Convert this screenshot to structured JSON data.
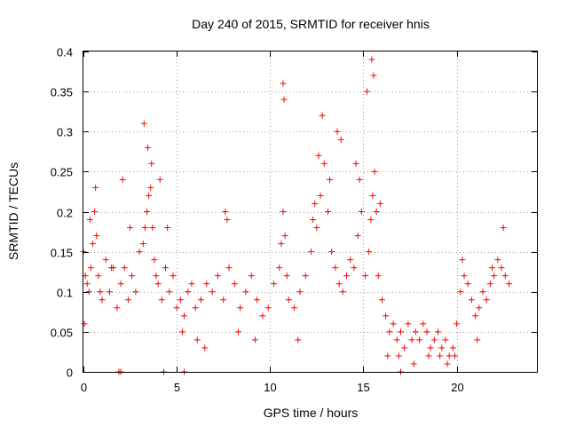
{
  "chart_data": {
    "type": "scatter",
    "title": "Day 240 of 2015, SRMTID for receiver hnis",
    "xlabel": "GPS time / hours",
    "ylabel": "SRMTID / TECUs",
    "xlim": [
      0,
      24.3
    ],
    "ylim": [
      0,
      0.4
    ],
    "xticks": [
      0,
      5,
      10,
      15,
      20
    ],
    "xtick_labels": [
      "0",
      "5",
      "10",
      "15",
      "20"
    ],
    "yticks": [
      0,
      0.05,
      0.1,
      0.15,
      0.2,
      0.25,
      0.3,
      0.35,
      0.4
    ],
    "ytick_labels": [
      "0",
      "0.05",
      "0.1",
      "0.15",
      "0.2",
      "0.25",
      "0.3",
      "0.35",
      "0.4"
    ],
    "grid": true,
    "marker": "+",
    "series": [
      {
        "name": "SRMTID hnis",
        "color": "#ff0000",
        "x": [
          0.0,
          0.1,
          0.2,
          0.3,
          0.4,
          0.5,
          0.6,
          0.7,
          0.8,
          0.9,
          1.0,
          1.2,
          1.4,
          1.6,
          1.8,
          2.0,
          2.2,
          2.4,
          2.6,
          2.8,
          3.0,
          3.2,
          3.3,
          3.4,
          3.5,
          3.6,
          3.7,
          3.8,
          3.9,
          4.0,
          4.2,
          4.4,
          4.6,
          4.8,
          5.0,
          5.2,
          5.4,
          5.6,
          5.8,
          6.0,
          6.3,
          6.6,
          6.9,
          7.2,
          7.5,
          7.8,
          8.1,
          8.4,
          8.7,
          9.0,
          9.3,
          9.6,
          9.9,
          10.2,
          10.5,
          10.6,
          10.7,
          10.8,
          10.9,
          11.0,
          11.3,
          11.6,
          11.9,
          12.2,
          12.5,
          12.7,
          12.9,
          13.1,
          13.3,
          13.5,
          13.7,
          13.9,
          14.1,
          14.3,
          14.5,
          14.7,
          14.9,
          15.1,
          15.3,
          15.4,
          15.5,
          15.6,
          15.7,
          15.8,
          16.0,
          16.2,
          16.4,
          16.6,
          16.8,
          17.0,
          17.2,
          17.4,
          17.6,
          17.8,
          18.0,
          18.2,
          18.4,
          18.6,
          18.8,
          19.0,
          19.2,
          19.4,
          19.6,
          19.8,
          20.0,
          20.2,
          20.4,
          20.6,
          20.8,
          21.0,
          21.2,
          21.4,
          21.6,
          21.8,
          22.0,
          22.2,
          22.4,
          22.6,
          22.8,
          0.05,
          0.35,
          0.65,
          1.5,
          2.1,
          2.5,
          3.25,
          3.45,
          3.65,
          4.1,
          4.5,
          5.3,
          6.1,
          6.5,
          7.6,
          7.7,
          8.3,
          9.2,
          10.7,
          10.75,
          11.5,
          12.3,
          12.4,
          12.6,
          12.8,
          13.2,
          13.6,
          13.8,
          14.6,
          14.8,
          15.2,
          15.45,
          15.55,
          15.9,
          16.3,
          16.9,
          17.7,
          18.5,
          19.1,
          19.5,
          19.9,
          20.3,
          21.1,
          21.9,
          22.5,
          1.9,
          2.0,
          4.3,
          5.4,
          17.0
        ],
        "y": [
          0.15,
          0.12,
          0.11,
          0.1,
          0.13,
          0.16,
          0.2,
          0.17,
          0.12,
          0.1,
          0.09,
          0.14,
          0.1,
          0.13,
          0.08,
          0.11,
          0.13,
          0.09,
          0.12,
          0.1,
          0.15,
          0.16,
          0.18,
          0.2,
          0.22,
          0.23,
          0.18,
          0.14,
          0.12,
          0.11,
          0.09,
          0.13,
          0.1,
          0.12,
          0.08,
          0.09,
          0.07,
          0.1,
          0.11,
          0.08,
          0.09,
          0.11,
          0.1,
          0.12,
          0.09,
          0.13,
          0.11,
          0.08,
          0.1,
          0.12,
          0.09,
          0.07,
          0.08,
          0.11,
          0.13,
          0.16,
          0.2,
          0.17,
          0.12,
          0.09,
          0.08,
          0.1,
          0.12,
          0.15,
          0.18,
          0.22,
          0.26,
          0.2,
          0.15,
          0.13,
          0.11,
          0.1,
          0.12,
          0.14,
          0.13,
          0.17,
          0.2,
          0.12,
          0.15,
          0.19,
          0.22,
          0.25,
          0.2,
          0.12,
          0.09,
          0.07,
          0.05,
          0.06,
          0.04,
          0.05,
          0.03,
          0.06,
          0.04,
          0.05,
          0.04,
          0.06,
          0.05,
          0.03,
          0.04,
          0.05,
          0.03,
          0.04,
          0.02,
          0.03,
          0.06,
          0.1,
          0.12,
          0.11,
          0.09,
          0.07,
          0.08,
          0.1,
          0.09,
          0.11,
          0.12,
          0.14,
          0.13,
          0.12,
          0.11,
          0.06,
          0.19,
          0.23,
          0.13,
          0.24,
          0.18,
          0.31,
          0.28,
          0.26,
          0.24,
          0.18,
          0.05,
          0.04,
          0.03,
          0.2,
          0.19,
          0.05,
          0.04,
          0.36,
          0.34,
          0.04,
          0.19,
          0.21,
          0.27,
          0.32,
          0.24,
          0.3,
          0.29,
          0.26,
          0.24,
          0.35,
          0.39,
          0.37,
          0.21,
          0.02,
          0.02,
          0.01,
          0.02,
          0.02,
          0.01,
          0.02,
          0.14,
          0.04,
          0.13,
          0.18,
          0.0,
          0.0,
          0.0,
          0.0,
          0.0
        ]
      }
    ]
  }
}
